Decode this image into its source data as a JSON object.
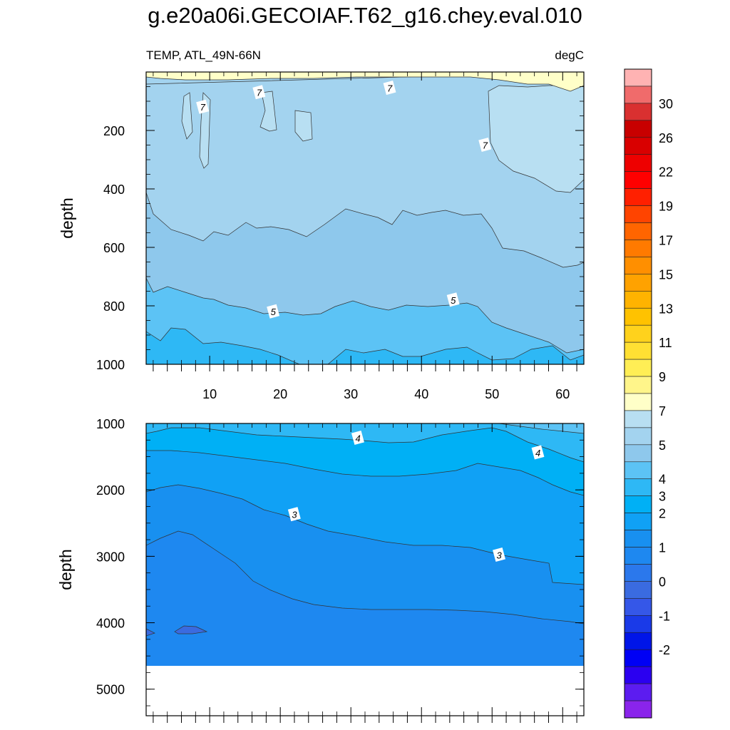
{
  "title": "g.e20a06i.GECOIAF.T62_g16.chey.eval.010",
  "chart_data": {
    "type": "contour",
    "field_label": "TEMP, ATL_49N-66N",
    "units": "degC",
    "x_ticks": [
      10,
      20,
      30,
      40,
      50,
      60
    ],
    "x_range": [
      1,
      63
    ],
    "panels": [
      {
        "name": "upper",
        "ylabel": "depth",
        "y_range": [
          0,
          1000
        ],
        "y_ticks": [
          200,
          400,
          600,
          800,
          1000
        ],
        "contour_labels": [
          {
            "text": "7",
            "x": 9,
            "y": 120
          },
          {
            "text": "7",
            "x": 17,
            "y": 70
          },
          {
            "text": "7",
            "x": 35.5,
            "y": 55
          },
          {
            "text": "7",
            "x": 49,
            "y": 250
          },
          {
            "text": "5",
            "x": 19,
            "y": 820
          },
          {
            "text": "5",
            "x": 44.5,
            "y": 780
          }
        ]
      },
      {
        "name": "lower",
        "ylabel": "depth",
        "y_range": [
          1000,
          5400
        ],
        "y_ticks": [
          1000,
          2000,
          3000,
          4000,
          5000
        ],
        "data_bottom_depth": 4620,
        "contour_labels": [
          {
            "text": "4",
            "x": 31,
            "y": 1220
          },
          {
            "text": "4",
            "x": 56.5,
            "y": 1440
          },
          {
            "text": "3",
            "x": 22,
            "y": 2370
          },
          {
            "text": "3",
            "x": 51,
            "y": 2980
          }
        ]
      }
    ],
    "colorbar": {
      "colors": [
        "#ffb3b3",
        "#f06b6b",
        "#d93030",
        "#c80000",
        "#d90000",
        "#ee0000",
        "#ff0000",
        "#ff2000",
        "#ff4400",
        "#ff6500",
        "#ff7a00",
        "#ff8f00",
        "#ffa200",
        "#ffb300",
        "#ffc200",
        "#ffd21c",
        "#ffe033",
        "#ffee55",
        "#fff58a",
        "#ffffc8",
        "#b8dff2",
        "#a3d3ef",
        "#8ec8ec",
        "#5cc3f5",
        "#2eb8f5",
        "#00b0f5",
        "#10a1f5",
        "#1890f0",
        "#1e88f0",
        "#2b78ec",
        "#3a6be0",
        "#3557e8",
        "#1a3ae8",
        "#0015e8",
        "#0000f5",
        "#2b00f0",
        "#5c1cf0",
        "#8a24eb"
      ],
      "labels": [
        "30",
        "26",
        "22",
        "19",
        "17",
        "15",
        "13",
        "11",
        "9",
        "7",
        "5",
        "4",
        "3",
        "2",
        "1",
        "0",
        "-1",
        "-2"
      ]
    }
  }
}
